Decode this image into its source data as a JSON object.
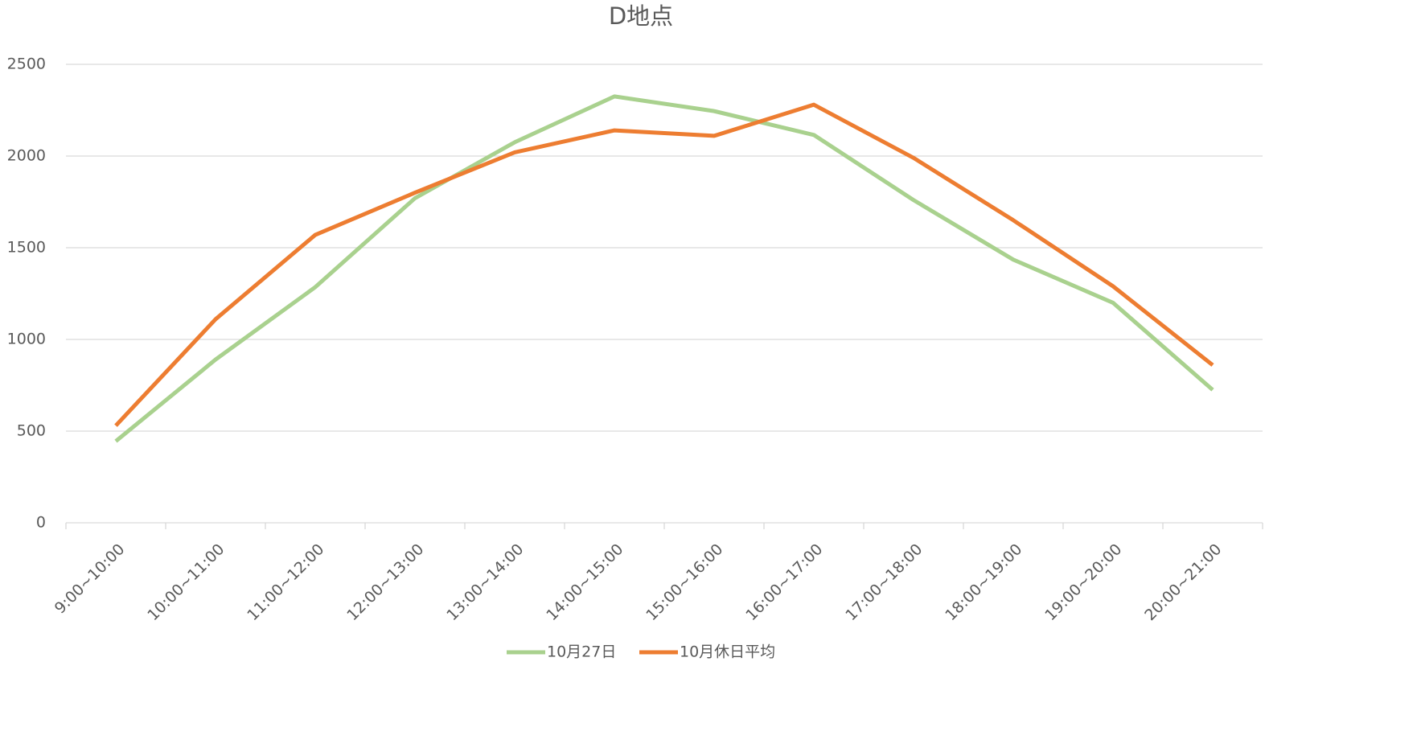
{
  "chart_data": {
    "type": "line",
    "title": "D地点",
    "categories": [
      "9:00~10:00",
      "10:00~11:00",
      "11:00~12:00",
      "12:00~13:00",
      "13:00~14:00",
      "14:00~15:00",
      "15:00~16:00",
      "16:00~17:00",
      "17:00~18:00",
      "18:00~19:00",
      "19:00~20:00",
      "20:00~21:00"
    ],
    "series": [
      {
        "name": "10月27日",
        "color": "#a9d18e",
        "values": [
          445,
          890,
          1285,
          1770,
          2075,
          2325,
          2245,
          2115,
          1760,
          1435,
          1200,
          725
        ]
      },
      {
        "name": "10月休日平均",
        "color": "#ed7d31",
        "values": [
          530,
          1110,
          1570,
          1800,
          2020,
          2140,
          2110,
          2280,
          1990,
          1650,
          1290,
          860
        ]
      }
    ],
    "ylim": [
      0,
      2500
    ],
    "yticks": [
      0,
      500,
      1000,
      1500,
      2000,
      2500
    ],
    "grid": true,
    "legend": "bottom"
  }
}
